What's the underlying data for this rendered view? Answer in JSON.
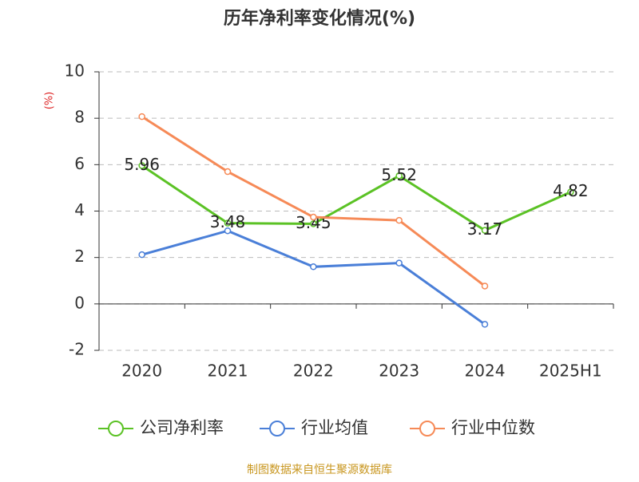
{
  "chart_data": {
    "type": "line",
    "title": "历年净利率变化情况(%)",
    "y_label": "(%)",
    "categories": [
      "2020",
      "2021",
      "2022",
      "2023",
      "2024",
      "2025H1"
    ],
    "series": [
      {
        "name": "公司净利率",
        "color": "#5bc225",
        "values": [
          5.96,
          3.48,
          3.45,
          5.52,
          3.17,
          4.82
        ],
        "show_labels": true
      },
      {
        "name": "行业均值",
        "color": "#4a7fd8",
        "values": [
          2.12,
          3.15,
          1.6,
          1.76,
          -0.88,
          null
        ]
      },
      {
        "name": "行业中位数",
        "color": "#f68a57",
        "values": [
          8.07,
          5.7,
          3.74,
          3.6,
          0.77,
          null
        ]
      }
    ],
    "ylim": [
      -2,
      10
    ],
    "yticks": [
      -2,
      0,
      2,
      4,
      6,
      8,
      10
    ],
    "grid": true,
    "source": "制图数据来自恒生聚源数据库"
  }
}
